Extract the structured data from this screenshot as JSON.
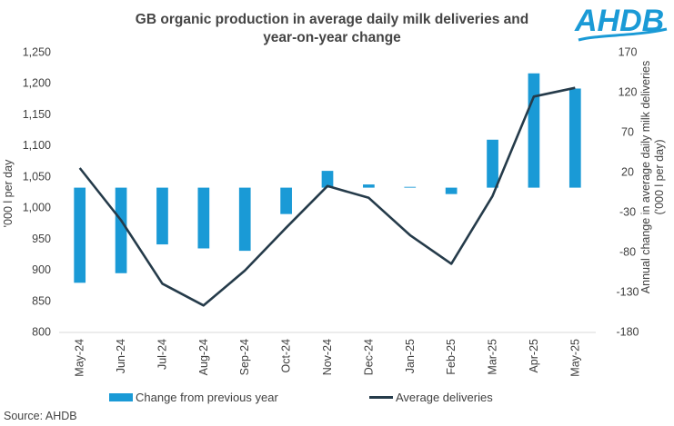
{
  "chart_data": {
    "type": "bar+line",
    "title_line1": "GB organic production in average daily milk deliveries and",
    "title_line2": "year-on-year change",
    "categories": [
      "May-24",
      "Jun-24",
      "Jul-24",
      "Aug-24",
      "Sep-24",
      "Oct-24",
      "Nov-24",
      "Dec-24",
      "Jan-25",
      "Feb-25",
      "Mar-25",
      "Apr-25",
      "May-25"
    ],
    "series": [
      {
        "name": "Change from previous year",
        "type": "bar",
        "axis": "right",
        "color": "#1a9ad6",
        "values": [
          -119,
          -107,
          -71,
          -76,
          -79,
          -33,
          21,
          4,
          1,
          -8,
          60,
          143,
          124
        ]
      },
      {
        "name": "Average deliveries",
        "type": "line",
        "axis": "left",
        "color": "#253b4a",
        "values": [
          1063,
          979,
          877,
          842,
          898,
          967,
          1034,
          1015,
          955,
          909,
          1018,
          1178,
          1192
        ]
      }
    ],
    "left_axis": {
      "label": "'000 l per day",
      "min": 800,
      "max": 1250,
      "ticks": [
        "800",
        "850",
        "900",
        "950",
        "1,000",
        "1,050",
        "1,100",
        "1,150",
        "1,200",
        "1,250"
      ]
    },
    "right_axis": {
      "label_line1": "Annual change in average daily milk deliveries",
      "label_line2": "('000 l per day)",
      "min": -180,
      "max": 170,
      "ticks": [
        "-180",
        "-130",
        "-80",
        "-30",
        "20",
        "70",
        "120",
        "170"
      ]
    },
    "legend_position": "bottom"
  },
  "logo_text": "AHDB",
  "source": "Source: AHDB"
}
